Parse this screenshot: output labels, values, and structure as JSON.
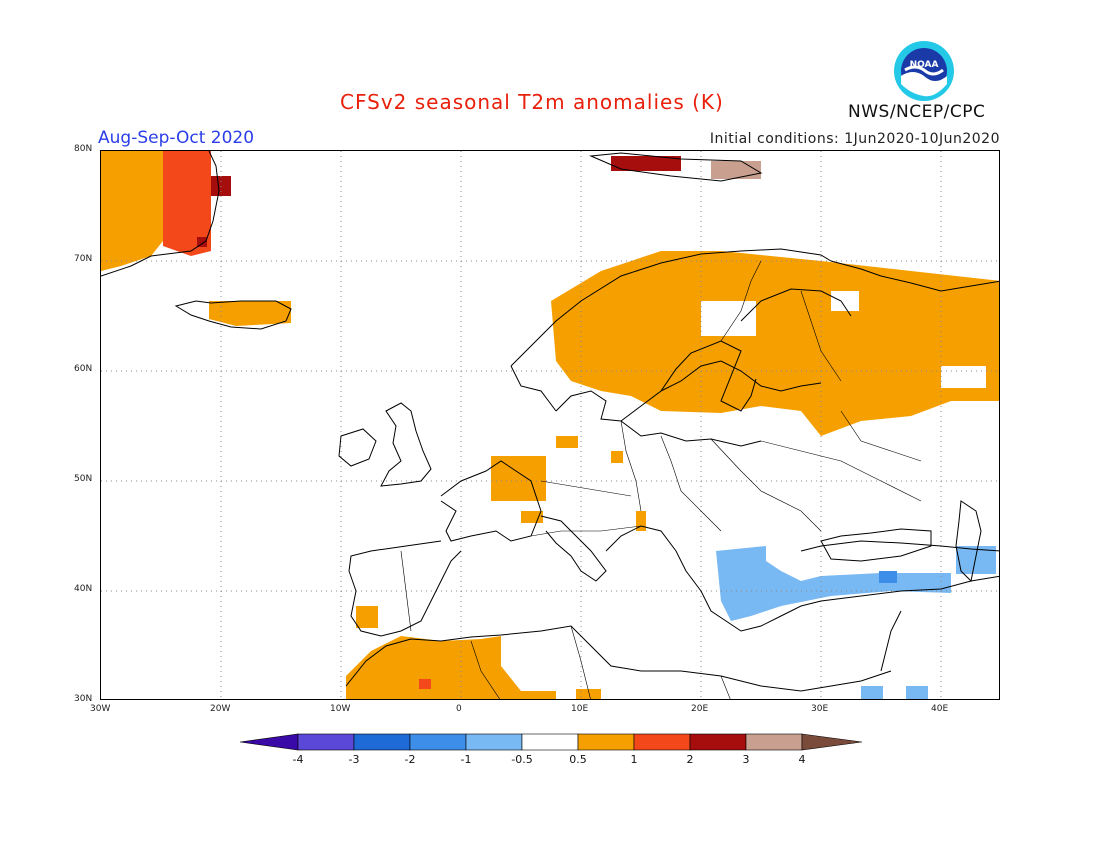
{
  "header": {
    "title": "CFSv2 seasonal T2m anomalies (K)",
    "period": "Aug-Sep-Oct 2020",
    "initial_conditions": "Initial conditions: 1Jun2020-10Jun2020",
    "agency": "NWS/NCEP/CPC",
    "logo_text": "NOAA"
  },
  "map": {
    "projection": "lat-lon",
    "lon_range": [
      -30,
      45
    ],
    "lat_range": [
      30,
      80
    ],
    "lat_ticks": [
      "80N",
      "70N",
      "60N",
      "50N",
      "40N",
      "30N"
    ],
    "lon_ticks": [
      "30W",
      "20W",
      "10W",
      "0",
      "10E",
      "20E",
      "30E",
      "40E"
    ],
    "gridlines": true
  },
  "colorbar": {
    "labels": [
      "-4",
      "-3",
      "-2",
      "-1",
      "-0.5",
      "0.5",
      "1",
      "2",
      "3",
      "4"
    ],
    "colors": [
      "#3a0aa8",
      "#5b48d8",
      "#1e6ad6",
      "#3c8ee8",
      "#78b8f3",
      "#ffffff",
      "#f5a000",
      "#f2481a",
      "#a60d0d",
      "#c9a090",
      "#7a4a3a"
    ]
  }
}
